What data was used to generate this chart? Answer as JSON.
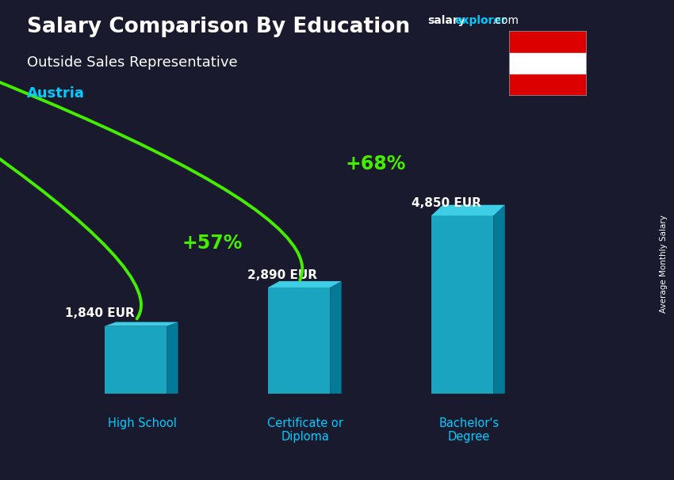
{
  "title_main": "Salary Comparison By Education",
  "subtitle": "Outside Sales Representative",
  "country": "Austria",
  "site_salary": "salary",
  "site_explorer": "explorer",
  "site_tld": ".com",
  "right_label": "Average Monthly Salary",
  "categories": [
    "High School",
    "Certificate or\nDiploma",
    "Bachelor's\nDegree"
  ],
  "values": [
    1840,
    2890,
    4850
  ],
  "value_labels": [
    "1,840 EUR",
    "2,890 EUR",
    "4,850 EUR"
  ],
  "pct_labels": [
    "+57%",
    "+68%"
  ],
  "bar_face_color": "#1ab8d4",
  "bar_top_color": "#40d8f0",
  "bar_side_color": "#0088a8",
  "bg_overlay_color": "#1a1a2e",
  "title_color": "#ffffff",
  "subtitle_color": "#ffffff",
  "country_color": "#00ccff",
  "value_label_color": "#ffffff",
  "pct_color": "#44ee00",
  "arrow_color": "#44ee00",
  "xlabel_color": "#00ccff",
  "flag_red": "#dd0000",
  "flag_white": "#ffffff",
  "site_color": "#ffffff",
  "site_explorer_color": "#00ccff"
}
